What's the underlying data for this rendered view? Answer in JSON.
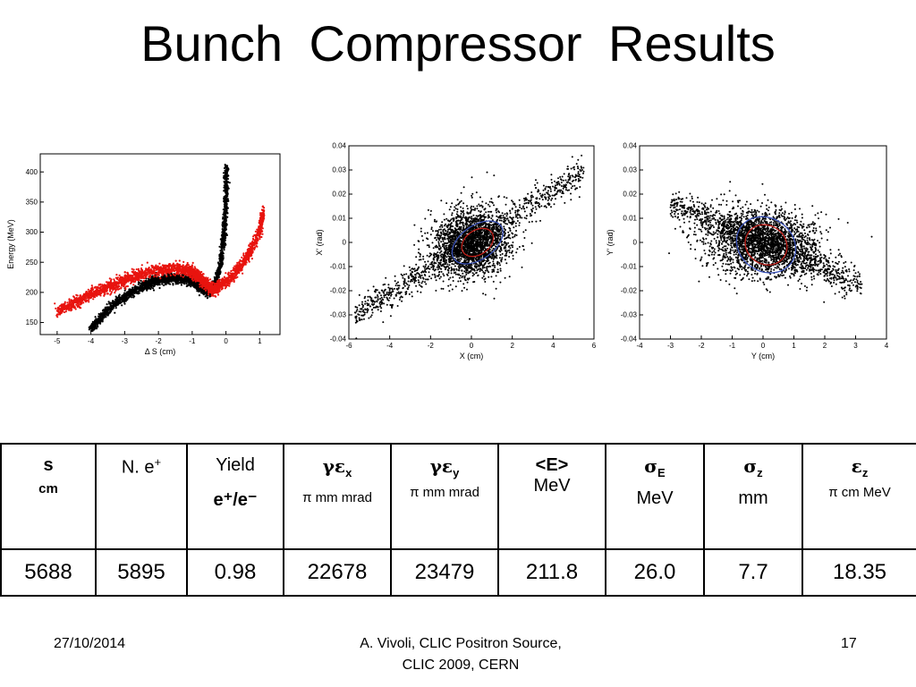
{
  "slide": {
    "title": "Bunch  Compressor  Results",
    "footer_date": "27/10/2014",
    "footer_author_line1": "A. Vivoli,  CLIC Positron Source,",
    "footer_author_line2": "CLIC 2009, CERN",
    "page_number": "17"
  },
  "colors": {
    "black_series": "#000000",
    "red_series": "#e8140f",
    "ellipse_blue": "#3a52b8",
    "ellipse_red": "#c0201a"
  },
  "table": {
    "headers": [
      {
        "main": "s",
        "sub": "cm"
      },
      {
        "main": "N. e",
        "sup": "+"
      },
      {
        "main": "Yield",
        "sub_html": "e⁺/e⁻"
      },
      {
        "main": "γε",
        "subscript": "x",
        "sub": "π mm  mrad"
      },
      {
        "main": "γε",
        "subscript": "y",
        "sub": "π mm mrad"
      },
      {
        "main": "<E>",
        "sub": "MeV"
      },
      {
        "main": "σ",
        "subscript": "E",
        "sub": "MeV"
      },
      {
        "main": "σ",
        "subscript": "z",
        "sub": "mm"
      },
      {
        "main": "ε",
        "subscript": "z",
        "sub": "π cm MeV"
      }
    ],
    "values": [
      "5688",
      "5895",
      "0.98",
      "22678",
      "23479",
      "211.8",
      "26.0",
      "7.7",
      "18.35"
    ]
  },
  "chart_data": [
    {
      "type": "scatter",
      "xlabel": "Δ S (cm)",
      "ylabel": "Energy (MeV)",
      "xlim": [
        -5.5,
        1.6
      ],
      "ylim": [
        130,
        430
      ],
      "xticks": [
        -5,
        -4,
        -3,
        -2,
        -1,
        0,
        1
      ],
      "yticks": [
        150,
        200,
        250,
        300,
        350,
        400
      ],
      "series": [
        {
          "color": "#000000",
          "curve": [
            [
              -4.0,
              140
            ],
            [
              -3.6,
              165
            ],
            [
              -3.2,
              185
            ],
            [
              -2.8,
              200
            ],
            [
              -2.4,
              212
            ],
            [
              -2.0,
              220
            ],
            [
              -1.6,
              224
            ],
            [
              -1.2,
              222
            ],
            [
              -0.9,
              215
            ],
            [
              -0.7,
              205
            ],
            [
              -0.5,
              200
            ],
            [
              -0.3,
              215
            ],
            [
              -0.15,
              250
            ],
            [
              -0.05,
              300
            ],
            [
              0.0,
              350
            ],
            [
              0.02,
              410
            ]
          ]
        },
        {
          "color": "#e8140f",
          "curve": [
            [
              -5.0,
              168
            ],
            [
              -4.5,
              182
            ],
            [
              -4.0,
              197
            ],
            [
              -3.5,
              208
            ],
            [
              -3.0,
              220
            ],
            [
              -2.5,
              230
            ],
            [
              -2.0,
              237
            ],
            [
              -1.5,
              240
            ],
            [
              -1.1,
              236
            ],
            [
              -0.8,
              225
            ],
            [
              -0.6,
              215
            ],
            [
              -0.4,
              205
            ],
            [
              -0.2,
              210
            ],
            [
              0.1,
              222
            ],
            [
              0.4,
              240
            ],
            [
              0.7,
              265
            ],
            [
              1.0,
              300
            ],
            [
              1.1,
              335
            ]
          ]
        }
      ]
    },
    {
      "type": "scatter",
      "xlabel": "X  (cm)",
      "ylabel": "X' (rad)",
      "xlim": [
        -6,
        6
      ],
      "ylim": [
        -0.04,
        0.04
      ],
      "xticks": [
        -6,
        -4,
        -2,
        0,
        2,
        4,
        6
      ],
      "xtick_labels": [
        "-6",
        "-4",
        "-2",
        "0",
        "2",
        "4",
        "6"
      ],
      "yticks": [
        -0.04,
        -0.03,
        -0.02,
        -0.01,
        0,
        0.01,
        0.02,
        0.03,
        0.04
      ],
      "ytick_labels": [
        "-0.04",
        "-0.03",
        "-0.02",
        "-0.01",
        "0",
        "0.01",
        "0.02",
        "0.03",
        "0.04"
      ],
      "series": [
        {
          "color": "#000000",
          "trend": {
            "slope": 0.0053,
            "intercept": 0.0,
            "x_range": [
              -5.7,
              5.5
            ]
          }
        }
      ],
      "ellipses": [
        {
          "color": "#3a52b8",
          "cx": 0.3,
          "cy": 0.0,
          "rx": 1.4,
          "ry": 0.007,
          "angle": -35
        },
        {
          "color": "#c0201a",
          "cx": 0.3,
          "cy": 0.0,
          "rx": 0.85,
          "ry": 0.005,
          "angle": -35
        }
      ]
    },
    {
      "type": "scatter",
      "xlabel": "Y  (cm)",
      "ylabel": "Y' (rad)",
      "xlim": [
        -4,
        4
      ],
      "ylim": [
        -0.04,
        0.04
      ],
      "xticks": [
        -4,
        -3,
        -2,
        -1,
        0,
        1,
        2,
        3,
        4
      ],
      "xtick_labels": [
        "-4",
        "-3",
        "-2",
        "-1",
        "0",
        "1",
        "2",
        "3",
        "4"
      ],
      "yticks": [
        -0.04,
        -0.03,
        -0.02,
        -0.01,
        0,
        0.01,
        0.02,
        0.03,
        0.04
      ],
      "ytick_labels": [
        "-0.04",
        "-0.03",
        "-0.02",
        "-0.01",
        "0",
        "0.01",
        "0.02",
        "0.03",
        "0.04"
      ],
      "series": [
        {
          "color": "#000000",
          "trend": {
            "slope": -0.0055,
            "intercept": 0.0,
            "x_range": [
              -3.0,
              3.2
            ]
          }
        }
      ],
      "ellipses": [
        {
          "color": "#3a52b8",
          "cx": 0.1,
          "cy": -0.001,
          "rx": 1.0,
          "ry": 0.011,
          "angle": 35
        },
        {
          "color": "#c0201a",
          "cx": 0.1,
          "cy": -0.001,
          "rx": 0.7,
          "ry": 0.008,
          "angle": 35
        }
      ]
    }
  ]
}
